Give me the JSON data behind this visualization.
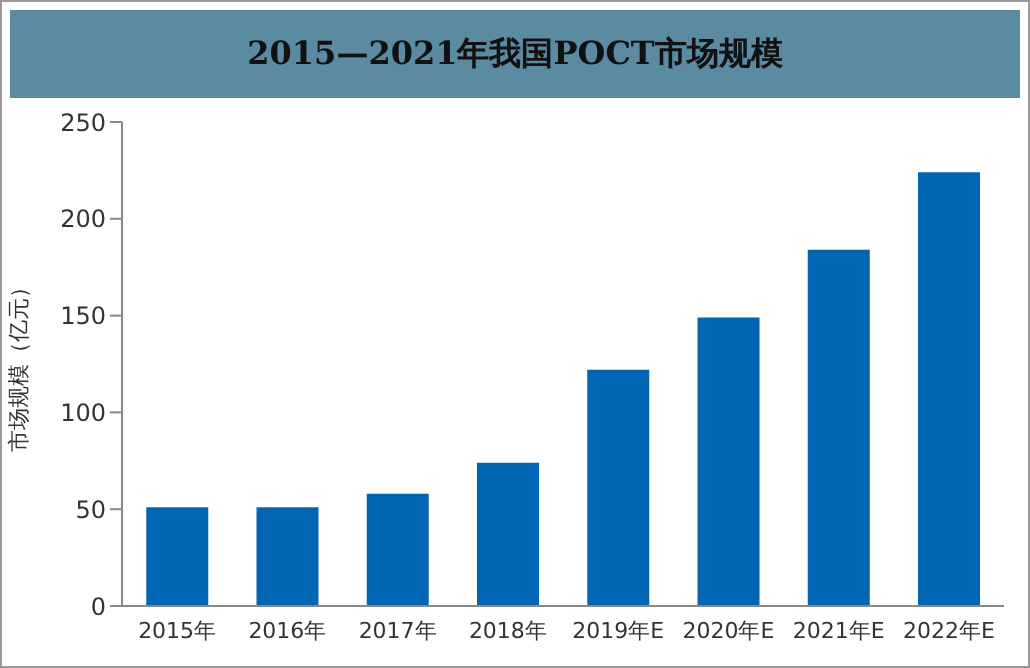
{
  "chart_data": {
    "type": "bar",
    "title": "2015—2021年我国POCT市场规模",
    "ylabel": "市场规模（亿元）",
    "categories": [
      "2015年",
      "2016年",
      "2017年",
      "2018年",
      "2019年E",
      "2020年E",
      "2021年E",
      "2022年E"
    ],
    "values": [
      51,
      51,
      58,
      74,
      122,
      149,
      184,
      224
    ],
    "color": "#0066b3",
    "ylim": [
      0,
      250
    ],
    "yticks": [
      0,
      50,
      100,
      150,
      200,
      250
    ],
    "grid": false
  }
}
